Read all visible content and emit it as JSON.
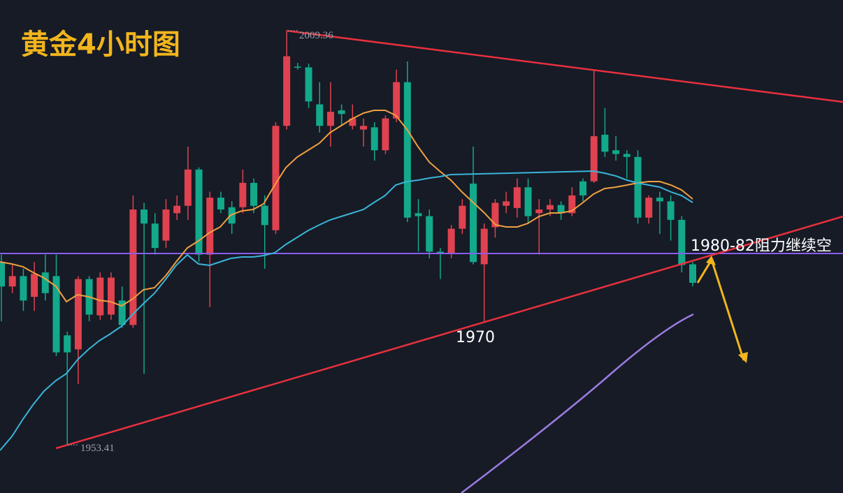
{
  "chart_data": {
    "type": "candlestick",
    "title": "黄金4小时图",
    "annotations": [
      "2009.36",
      "1953.41",
      "1970",
      "1980-82阻力继续空"
    ],
    "up_color": "#e0424f",
    "down_color": "#13a98b",
    "ylim": [
      1946.9,
      2013.5
    ],
    "open": [
      1978.1,
      1974.8,
      1976.2,
      1973.4,
      1976.7,
      1976.2,
      1968.2,
      1966.3,
      1975.8,
      1970.9,
      1971.0,
      1972.9,
      1969.6,
      1985.2,
      1983.3,
      1981.0,
      1984.7,
      1985.7,
      1990.6,
      1979.1,
      1986.8,
      1985.5,
      1985.5,
      1988.8,
      1985.7,
      1982.4,
      1996.5,
      2004.5,
      2004.4,
      1999.4,
      1996.5,
      1998.6,
      1996.5,
      1996.0,
      1996.3,
      1993.2,
      1997.5,
      2002.4,
      1984.7,
      1984.3,
      1979.5,
      1979.3,
      1982.6,
      1988.7,
      1977.8,
      1982.8,
      1985.7,
      1985.4,
      1988.2,
      1984.7,
      1985.2,
      1985.8,
      1984.7,
      1989.0,
      1989.0,
      1995.3,
      1993.2,
      1992.7,
      1992.3,
      1984.1,
      1986.8,
      1986.3,
      1983.8,
      1977.8
    ],
    "high": [
      1979.1,
      1977.7,
      1977.2,
      1978.1,
      1979.1,
      1979.1,
      1968.7,
      1976.2,
      1976.2,
      1976.7,
      1976.7,
      1974.8,
      1987.1,
      1986.1,
      1984.7,
      1986.6,
      1987.1,
      1993.7,
      1990.9,
      1987.6,
      1987.6,
      1986.3,
      1990.6,
      1989.4,
      1987.1,
      1997.0,
      2009.36,
      2005.0,
      2004.9,
      2002.4,
      2002.4,
      1999.4,
      1999.4,
      1997.5,
      1997.0,
      1997.9,
      2004.1,
      2005.2,
      1986.6,
      1985.2,
      1980.0,
      1983.1,
      1986.6,
      1993.7,
      1983.3,
      1986.6,
      1987.6,
      1989.4,
      1989.4,
      1986.6,
      1986.6,
      1986.3,
      1988.2,
      1989.4,
      2004.1,
      1998.9,
      1995.1,
      1993.2,
      1993.2,
      1987.1,
      1987.6,
      1987.1,
      1984.3,
      1978.1
    ],
    "low": [
      1970.1,
      1973.9,
      1971.5,
      1971.5,
      1972.9,
      1965.4,
      1953.41,
      1961.6,
      1970.1,
      1970.3,
      1970.3,
      1969.2,
      1969.2,
      1963.0,
      1979.1,
      1980.0,
      1983.8,
      1983.8,
      1978.1,
      1972.0,
      1984.7,
      1981.9,
      1984.7,
      1984.7,
      1977.2,
      1981.9,
      1996.0,
      2004.1,
      1998.9,
      1995.6,
      1993.7,
      1996.5,
      1996.0,
      1993.7,
      1991.8,
      1992.7,
      1997.0,
      1983.5,
      1979.5,
      1978.6,
      1975.8,
      1978.6,
      1981.9,
      1977.8,
      1970,
      1981.4,
      1984.7,
      1984.1,
      1983.3,
      1979.1,
      1984.3,
      1983.8,
      1984.3,
      1986.3,
      1988.8,
      1992.3,
      1991.8,
      1989.4,
      1983.3,
      1983.3,
      1981.9,
      1981.0,
      1976.7,
      1974.8
    ],
    "close": [
      1974.8,
      1976.2,
      1972.9,
      1976.5,
      1973.9,
      1965.9,
      1965.9,
      1975.8,
      1971.0,
      1976.0,
      1976.0,
      1969.6,
      1985.2,
      1983.3,
      1980.0,
      1985.2,
      1985.7,
      1990.6,
      1979.1,
      1986.8,
      1985.2,
      1983.3,
      1988.8,
      1985.7,
      1983.1,
      1996.5,
      2005.9,
      2004.4,
      1999.8,
      1996.5,
      1998.4,
      1998.1,
      1997.5,
      1996.5,
      1993.2,
      1997.5,
      2002.4,
      1984.1,
      1984.3,
      1979.5,
      1979.3,
      1982.6,
      1985.7,
      1978.1,
      1982.6,
      1986.1,
      1986.3,
      1988.2,
      1984.3,
      1985.2,
      1985.8,
      1984.7,
      1987.1,
      1987.1,
      1995.1,
      1993.0,
      1992.7,
      1992.3,
      1984.1,
      1986.8,
      1986.3,
      1983.8,
      1977.7,
      1975.3
    ]
  }
}
